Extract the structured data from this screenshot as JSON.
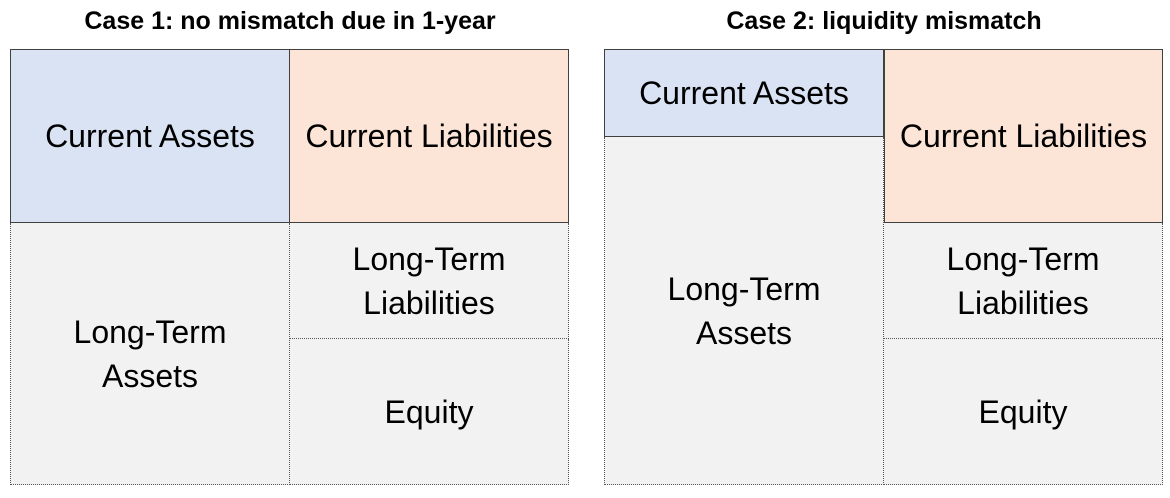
{
  "case1": {
    "title": "Case 1: no mismatch due in 1-year",
    "current_assets": "Current Assets",
    "current_liabilities": "Current Liabilities",
    "long_term_assets": [
      "Long-Term",
      "Assets"
    ],
    "long_term_liabilities": [
      "Long-Term",
      "Liabilities"
    ],
    "equity": "Equity"
  },
  "case2": {
    "title": "Case 2: liquidity mismatch",
    "current_assets": "Current Assets",
    "current_liabilities": "Current Liabilities",
    "long_term_assets": [
      "Long-Term",
      "Assets"
    ],
    "long_term_liabilities": [
      "Long-Term",
      "Liabilities"
    ],
    "equity": "Equity"
  },
  "colors": {
    "current_assets": "#dae3f3",
    "current_liabilities": "#fce4d6",
    "long_term": "#f2f2f2"
  }
}
